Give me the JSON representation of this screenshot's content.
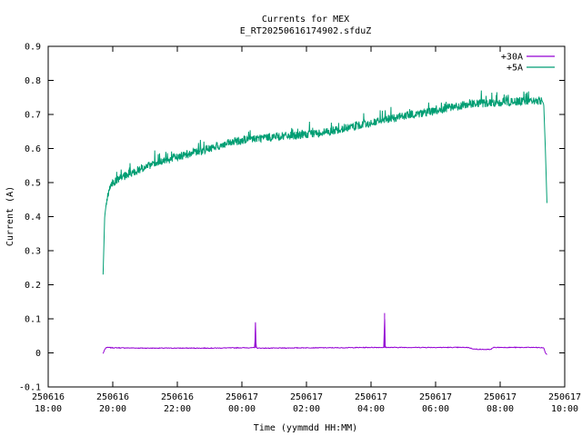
{
  "chart_data": {
    "type": "line",
    "title": "Currents for MEX",
    "subtitle": "E_RT20250616174902.sfduZ",
    "xlabel": "Time (yymmdd HH:MM)",
    "ylabel": "Current (A)",
    "xlim_hours": [
      18,
      34
    ],
    "ylim": [
      -0.1,
      0.9
    ],
    "yticks": [
      "-0.1",
      "0",
      "0.1",
      "0.2",
      "0.3",
      "0.4",
      "0.5",
      "0.6",
      "0.7",
      "0.8",
      "0.9"
    ],
    "xticks": [
      {
        "date": "250616",
        "time": "18:00"
      },
      {
        "date": "250616",
        "time": "20:00"
      },
      {
        "date": "250616",
        "time": "22:00"
      },
      {
        "date": "250617",
        "time": "00:00"
      },
      {
        "date": "250617",
        "time": "02:00"
      },
      {
        "date": "250617",
        "time": "04:00"
      },
      {
        "date": "250617",
        "time": "06:00"
      },
      {
        "date": "250617",
        "time": "08:00"
      },
      {
        "date": "250617",
        "time": "10:00"
      }
    ],
    "grid": false,
    "legend": "top-right",
    "series": [
      {
        "name": "+30A",
        "color": "#9400d3",
        "x": [
          19.7,
          19.75,
          19.8,
          20.0,
          21.0,
          22.0,
          23.0,
          24.0,
          24.4,
          24.42,
          24.44,
          24.5,
          25.0,
          26.0,
          27.0,
          28.0,
          28.4,
          28.42,
          28.44,
          28.5,
          29.0,
          30.0,
          31.0,
          31.2,
          31.5,
          31.7,
          31.8,
          32.0,
          33.0,
          33.35,
          33.4,
          33.45
        ],
        "y": [
          -0.002,
          0.01,
          0.016,
          0.015,
          0.014,
          0.014,
          0.014,
          0.015,
          0.015,
          0.09,
          0.015,
          0.014,
          0.014,
          0.015,
          0.015,
          0.016,
          0.016,
          0.117,
          0.016,
          0.016,
          0.016,
          0.016,
          0.016,
          0.011,
          0.01,
          0.01,
          0.016,
          0.016,
          0.016,
          0.015,
          0.0,
          -0.005
        ]
      },
      {
        "name": "+5A",
        "color": "#009e73",
        "x": [
          19.7,
          19.75,
          19.8,
          19.9,
          20.0,
          20.3,
          20.5,
          21.0,
          22.0,
          23.0,
          24.0,
          25.0,
          26.0,
          27.0,
          28.0,
          29.0,
          30.0,
          31.0,
          32.0,
          33.0,
          33.3,
          33.35,
          33.4,
          33.45
        ],
        "y": [
          0.23,
          0.4,
          0.44,
          0.48,
          0.5,
          0.515,
          0.525,
          0.545,
          0.575,
          0.6,
          0.625,
          0.635,
          0.64,
          0.655,
          0.675,
          0.695,
          0.71,
          0.73,
          0.735,
          0.74,
          0.74,
          0.73,
          0.6,
          0.44
        ]
      }
    ]
  }
}
